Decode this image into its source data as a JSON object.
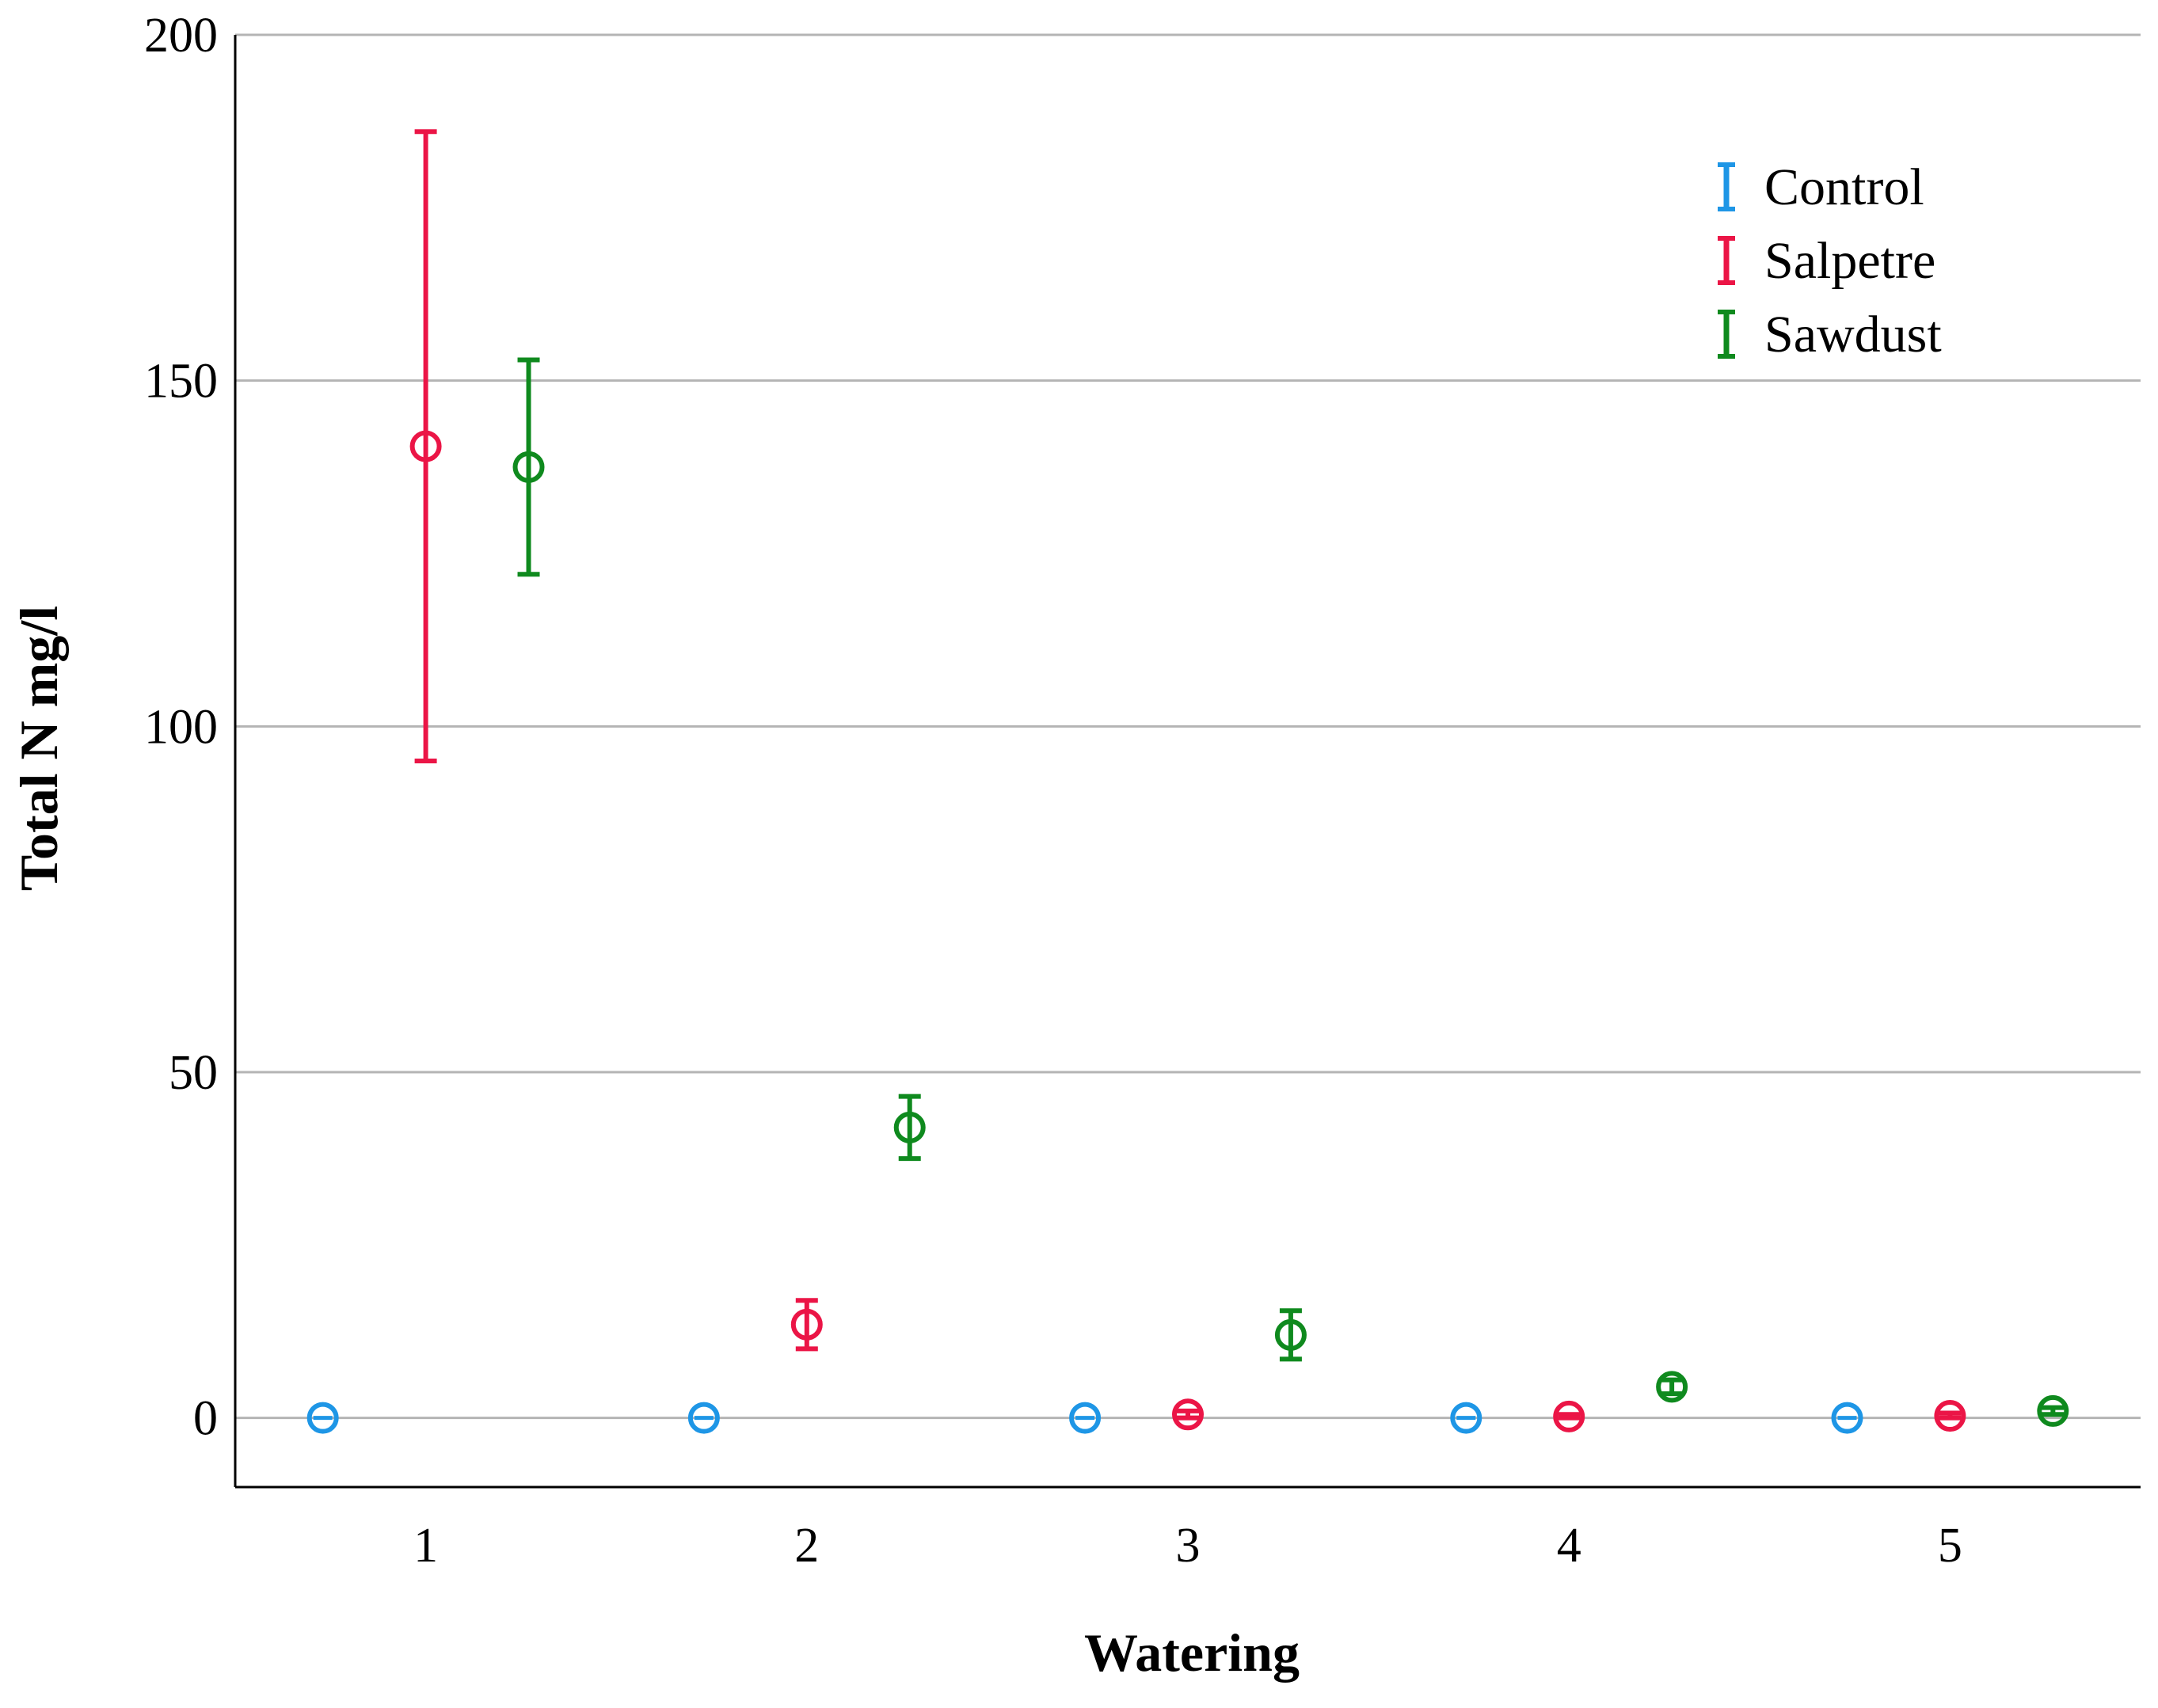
{
  "chart_data": {
    "type": "scatter",
    "subtype": "error-bar",
    "title": "",
    "xlabel": "Watering",
    "ylabel": "Total N mg/l",
    "categories": [
      "1",
      "2",
      "3",
      "4",
      "5"
    ],
    "ylim": [
      -10,
      200
    ],
    "yticks": [
      0,
      50,
      100,
      150,
      200
    ],
    "grid": true,
    "legend_position": "top-right",
    "series": [
      {
        "name": "Control",
        "color": "#1e96e6",
        "points": [
          {
            "x": "1",
            "mean": 0,
            "lower": 0,
            "upper": 0
          },
          {
            "x": "2",
            "mean": 0,
            "lower": 0,
            "upper": 0
          },
          {
            "x": "3",
            "mean": 0,
            "lower": 0,
            "upper": 0
          },
          {
            "x": "4",
            "mean": 0,
            "lower": 0,
            "upper": 0
          },
          {
            "x": "5",
            "mean": 0,
            "lower": 0,
            "upper": 0
          }
        ]
      },
      {
        "name": "Salpetre",
        "color": "#eb1546",
        "points": [
          {
            "x": "1",
            "mean": 140.5,
            "lower": 95,
            "upper": 186
          },
          {
            "x": "2",
            "mean": 13.5,
            "lower": 10,
            "upper": 17
          },
          {
            "x": "3",
            "mean": 0.5,
            "lower": 0,
            "upper": 1
          },
          {
            "x": "4",
            "mean": 0.2,
            "lower": 0,
            "upper": 0.5
          },
          {
            "x": "5",
            "mean": 0.3,
            "lower": 0,
            "upper": 0.7
          }
        ]
      },
      {
        "name": "Sawdust",
        "color": "#0f8a1e",
        "points": [
          {
            "x": "1",
            "mean": 137.5,
            "lower": 122,
            "upper": 153
          },
          {
            "x": "2",
            "mean": 42,
            "lower": 37.5,
            "upper": 46.5
          },
          {
            "x": "3",
            "mean": 12,
            "lower": 8.5,
            "upper": 15.5
          },
          {
            "x": "4",
            "mean": 4.5,
            "lower": 3.5,
            "upper": 5.5
          },
          {
            "x": "5",
            "mean": 1,
            "lower": 0.5,
            "upper": 1.5
          }
        ]
      }
    ]
  }
}
